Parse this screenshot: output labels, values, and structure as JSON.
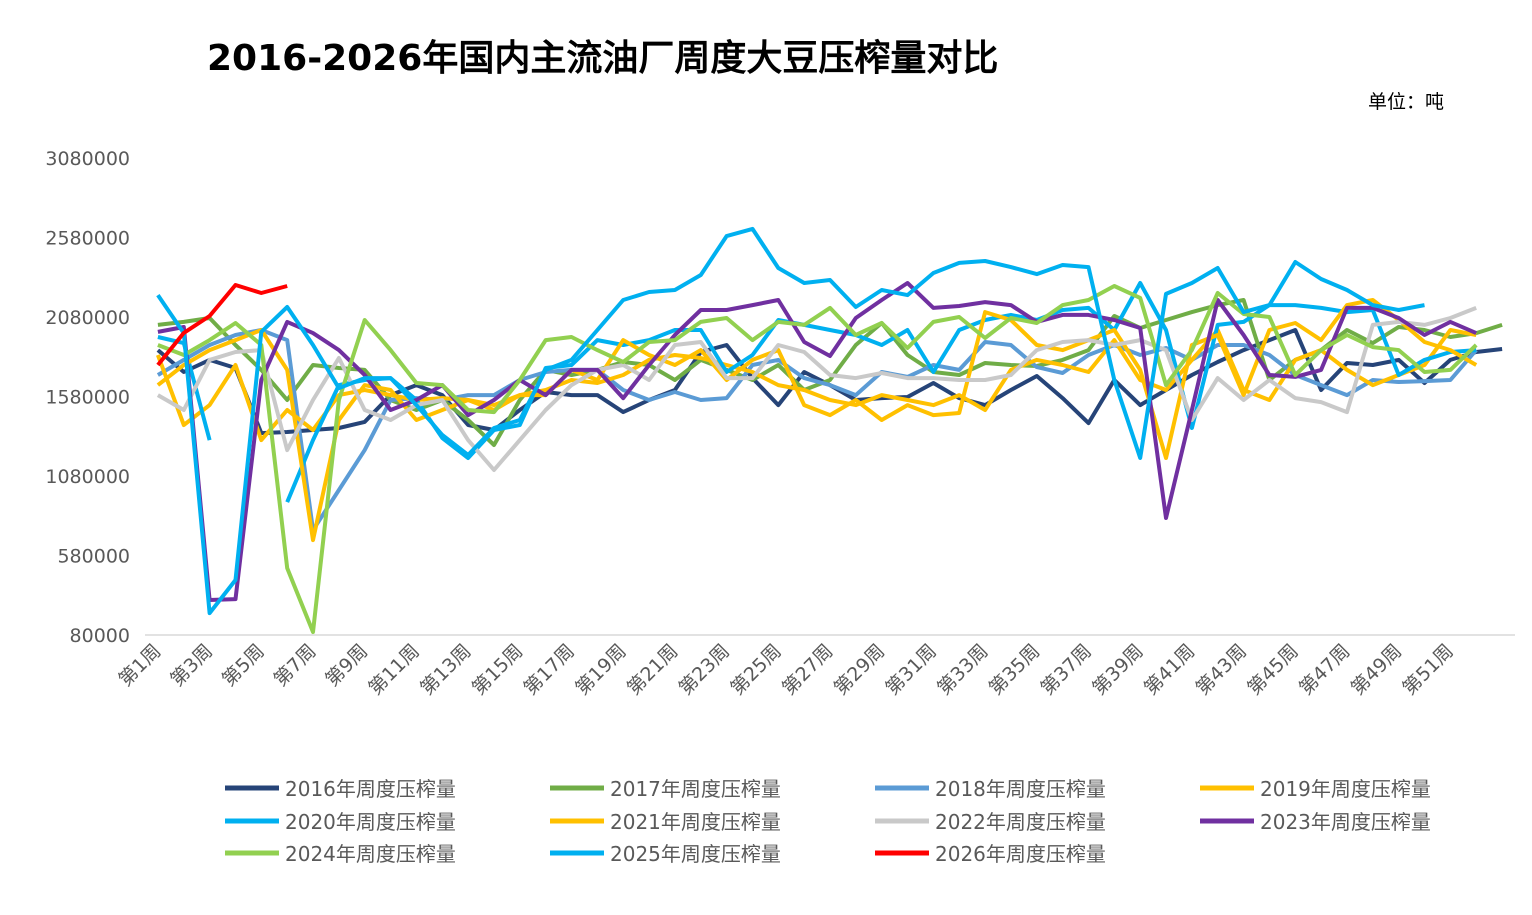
{
  "chart_data": {
    "type": "line",
    "title": "2016-2026年国内主流油厂周度大豆压榨量对比",
    "unit_label": "单位：吨",
    "xlabel": "",
    "ylabel": "",
    "ylim": [
      80000,
      3080000
    ],
    "y_ticks": [
      "80000",
      "580000",
      "1080000",
      "1580000",
      "2080000",
      "2580000",
      "3080000"
    ],
    "grid": false,
    "legend_position": "bottom",
    "categories": [
      "第1周",
      "第2周",
      "第3周",
      "第4周",
      "第5周",
      "第6周",
      "第7周",
      "第8周",
      "第9周",
      "第10周",
      "第11周",
      "第12周",
      "第13周",
      "第14周",
      "第15周",
      "第16周",
      "第17周",
      "第18周",
      "第19周",
      "第20周",
      "第21周",
      "第22周",
      "第23周",
      "第24周",
      "第25周",
      "第26周",
      "第27周",
      "第28周",
      "第29周",
      "第30周",
      "第31周",
      "第32周",
      "第33周",
      "第34周",
      "第35周",
      "第36周",
      "第37周",
      "第38周",
      "第39周",
      "第40周",
      "第41周",
      "第42周",
      "第43周",
      "第44周",
      "第45周",
      "第46周",
      "第47周",
      "第48周",
      "第49周",
      "第50周",
      "第51周",
      "第52周",
      "第53周"
    ],
    "x_tick_labels": [
      "第1周",
      "第3周",
      "第5周",
      "第7周",
      "第9周",
      "第11周",
      "第13周",
      "第15周",
      "第17周",
      "第19周",
      "第21周",
      "第23周",
      "第25周",
      "第27周",
      "第29周",
      "第31周",
      "第33周",
      "第35周",
      "第37周",
      "第39周",
      "第41周",
      "第43周",
      "第45周",
      "第47周",
      "第49周",
      "第51周"
    ],
    "series": [
      {
        "name": "2016年周度压榨量",
        "color": "#264478",
        "values": [
          1872000,
          1734000,
          1810000,
          1759000,
          1350000,
          1357000,
          1369000,
          1382000,
          1420000,
          1589000,
          1652000,
          1589000,
          1401000,
          1369000,
          1495000,
          1608000,
          1589000,
          1589000,
          1482000,
          1558000,
          1621000,
          1860000,
          1904000,
          1696000,
          1526000,
          1734000,
          1652000,
          1558000,
          1570000,
          1577000,
          1665000,
          1570000,
          1526000,
          1621000,
          1709000,
          1570000,
          1413000,
          1684000,
          1526000,
          1621000,
          1715000,
          1797000,
          1872000,
          1935000,
          1998000,
          1621000,
          1791000,
          1778000,
          1810000,
          1665000,
          1810000,
          1860000,
          1879000
        ]
      },
      {
        "name": "2017年周度压榨量",
        "color": "#70AD47",
        "values": [
          2030000,
          2049000,
          2074000,
          1904000,
          1747000,
          1558000,
          1778000,
          1759000,
          1747000,
          1558000,
          1495000,
          1558000,
          1432000,
          1275000,
          1558000,
          1747000,
          1715000,
          1747000,
          1797000,
          1778000,
          1684000,
          1810000,
          1747000,
          1684000,
          1778000,
          1621000,
          1684000,
          1904000,
          2042000,
          1841000,
          1734000,
          1715000,
          1791000,
          1778000,
          1772000,
          1810000,
          1872000,
          2086000,
          2011000,
          2061000,
          2111000,
          2155000,
          2187000,
          1684000,
          1810000,
          1872000,
          1998000,
          1916000,
          2017000,
          1998000,
          1954000,
          1979000,
          2030000
        ]
      },
      {
        "name": "2018年周度压榨量",
        "color": "#5B9BD5",
        "values": [
          1715000,
          1810000,
          1904000,
          1967000,
          1998000,
          1935000,
          740000,
          992000,
          1243000,
          1558000,
          1570000,
          1558000,
          1589000,
          1589000,
          1684000,
          1734000,
          1747000,
          1747000,
          1621000,
          1558000,
          1608000,
          1558000,
          1570000,
          1778000,
          1810000,
          1696000,
          1652000,
          1589000,
          1734000,
          1703000,
          1778000,
          1747000,
          1923000,
          1904000,
          1765000,
          1728000,
          1841000,
          1904000,
          1841000,
          1885000,
          1810000,
          1904000,
          1904000,
          1841000,
          1715000,
          1652000,
          1589000,
          1684000,
          1671000,
          1677000,
          1684000,
          1872000,
          null
        ]
      },
      {
        "name": "2019年周度压榨量",
        "color": "#FFC000",
        "values": [
          1841000,
          1401000,
          1526000,
          1778000,
          1306000,
          1495000,
          1369000,
          1589000,
          1621000,
          1589000,
          1558000,
          1570000,
          1558000,
          1526000,
          1589000,
          1621000,
          1684000,
          1665000,
          1715000,
          1810000,
          1841000,
          1822000,
          1778000,
          1734000,
          1652000,
          1621000,
          1558000,
          1526000,
          1589000,
          1558000,
          1526000,
          1589000,
          1495000,
          1747000,
          1810000,
          1778000,
          1734000,
          1935000,
          1684000,
          1621000,
          1810000,
          1998000,
          1621000,
          1558000,
          1810000,
          1872000,
          1747000,
          1652000,
          1715000,
          1778000,
          1998000,
          1967000,
          null
        ]
      },
      {
        "name": "2020年周度压榨量",
        "color": "#00B0F0",
        "values": [
          1954000,
          1916000,
          1306000,
          null,
          null,
          916000,
          1306000,
          1652000,
          1684000,
          1696000,
          1558000,
          1319000,
          1193000,
          1369000,
          1401000,
          1759000,
          1778000,
          1935000,
          1904000,
          1935000,
          1998000,
          1998000,
          1734000,
          1841000,
          2061000,
          2030000,
          1998000,
          1967000,
          1904000,
          1998000,
          1734000,
          1998000,
          2061000,
          2093000,
          2061000,
          2124000,
          2137000,
          1998000,
          2294000,
          1998000,
          1382000,
          2030000,
          2049000,
          2155000,
          2155000,
          2137000,
          2111000,
          2124000,
          1715000,
          1810000,
          1860000,
          1872000,
          null
        ]
      },
      {
        "name": "2021年周度压榨量",
        "color": "#FFC000",
        "values": [
          1652000,
          1778000,
          1872000,
          1935000,
          1998000,
          1747000,
          677000,
          1432000,
          1652000,
          1621000,
          1432000,
          1495000,
          1558000,
          1495000,
          1589000,
          1589000,
          1747000,
          1684000,
          1935000,
          1841000,
          1778000,
          1872000,
          1684000,
          1810000,
          1872000,
          1526000,
          1463000,
          1558000,
          1432000,
          1526000,
          1463000,
          1476000,
          2111000,
          2061000,
          1904000,
          1872000,
          1935000,
          1998000,
          1747000,
          1193000,
          1904000,
          1967000,
          1589000,
          1998000,
          2042000,
          1935000,
          2155000,
          2187000,
          2061000,
          1923000,
          1872000,
          1778000,
          null
        ]
      },
      {
        "name": "2022年周度压榨量",
        "color": "#C9C9C9",
        "values": [
          1589000,
          1495000,
          1810000,
          1860000,
          1872000,
          1243000,
          1558000,
          1822000,
          1495000,
          1432000,
          1526000,
          1558000,
          1306000,
          1118000,
          1306000,
          1495000,
          1652000,
          1747000,
          1778000,
          1684000,
          1904000,
          1923000,
          1696000,
          1696000,
          1904000,
          1860000,
          1715000,
          1696000,
          1728000,
          1696000,
          1696000,
          1684000,
          1684000,
          1715000,
          1872000,
          1923000,
          1935000,
          1904000,
          1935000,
          1872000,
          1432000,
          1696000,
          1558000,
          1684000,
          1570000,
          1545000,
          1482000,
          2030000,
          2049000,
          2030000,
          2074000,
          2137000,
          null
        ]
      },
      {
        "name": "2023年周度压榨量",
        "color": "#7030A0",
        "values": [
          1986000,
          2017000,
          300000,
          306000,
          1684000,
          2049000,
          1979000,
          1872000,
          1715000,
          1495000,
          1558000,
          1652000,
          1463000,
          1558000,
          1684000,
          1589000,
          1747000,
          1747000,
          1570000,
          1778000,
          1967000,
          2124000,
          2124000,
          2155000,
          2187000,
          1923000,
          1835000,
          2074000,
          2187000,
          2294000,
          2137000,
          2149000,
          2174000,
          2155000,
          2049000,
          2093000,
          2093000,
          2061000,
          2011000,
          816000,
          1495000,
          2187000,
          1967000,
          1715000,
          1703000,
          1747000,
          2137000,
          2137000,
          2074000,
          1967000,
          2049000,
          1979000,
          null
        ]
      },
      {
        "name": "2024年周度压榨量",
        "color": "#92D050",
        "values": [
          1904000,
          1841000,
          1935000,
          2042000,
          1904000,
          501000,
          99000,
          1558000,
          2061000,
          1872000,
          1665000,
          1652000,
          1495000,
          1482000,
          1684000,
          1935000,
          1954000,
          1872000,
          1797000,
          1923000,
          1935000,
          2049000,
          2074000,
          1935000,
          2049000,
          2030000,
          2137000,
          1967000,
          2042000,
          1885000,
          2049000,
          2080000,
          1948000,
          2074000,
          2042000,
          2155000,
          2187000,
          2275000,
          2200000,
          1652000,
          1872000,
          2231000,
          2099000,
          2080000,
          1715000,
          1872000,
          1967000,
          1891000,
          1872000,
          1734000,
          1747000,
          1904000,
          null
        ]
      },
      {
        "name": "2025年周度压榨量",
        "color": "#00B0F0",
        "values": [
          2218000,
          1979000,
          218000,
          426000,
          1986000,
          2143000,
          1904000,
          1633000,
          1696000,
          1696000,
          1526000,
          1338000,
          1212000,
          1382000,
          1432000,
          1747000,
          1810000,
          1998000,
          2187000,
          2237000,
          2250000,
          2344000,
          2589000,
          2634000,
          2388000,
          2294000,
          2313000,
          2143000,
          2250000,
          2218000,
          2357000,
          2420000,
          2432000,
          2394000,
          2350000,
          2407000,
          2394000,
          1684000,
          1193000,
          2225000,
          2294000,
          2388000,
          2111000,
          2155000,
          2426000,
          2319000,
          2250000,
          2155000,
          2124000,
          2155000,
          null,
          null,
          null
        ]
      },
      {
        "name": "2026年周度压榨量",
        "color": "#FF0000",
        "values": [
          1778000,
          1980000,
          2086000,
          2281000,
          2231000,
          2275000,
          null,
          null,
          null,
          null,
          null,
          null,
          null,
          null,
          null,
          null,
          null,
          null,
          null,
          null,
          null,
          null,
          null,
          null,
          null,
          null,
          null,
          null,
          null,
          null,
          null,
          null,
          null,
          null,
          null,
          null,
          null,
          null,
          null,
          null,
          null,
          null,
          null,
          null,
          null,
          null,
          null,
          null,
          null,
          null,
          null,
          null,
          null
        ]
      }
    ]
  }
}
